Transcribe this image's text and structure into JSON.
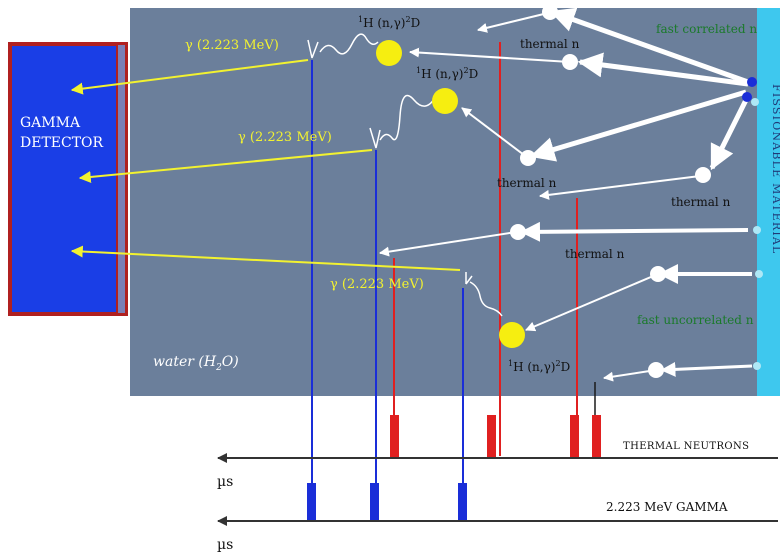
{
  "detector": {
    "line1": "GAMMA",
    "line2": "DETECTOR"
  },
  "material": {
    "label": "FISSIONABLE MATERIAL"
  },
  "water": {
    "label": "water (H",
    "sub": "2",
    "close": "O)"
  },
  "gammas": [
    {
      "label": "γ (2.223 MeV)"
    },
    {
      "label": "γ (2.223 MeV)"
    },
    {
      "label": "γ (2.223 MeV)"
    }
  ],
  "captures": [
    {
      "sup1": "1",
      "a": "H (n,",
      "g": "γ",
      "b": ")",
      "sup2": "2",
      "c": "D"
    },
    {
      "sup1": "1",
      "a": "H (n,",
      "g": "γ",
      "b": ")",
      "sup2": "2",
      "c": "D"
    },
    {
      "sup1": "1",
      "a": "H (n,",
      "g": "γ",
      "b": ")",
      "sup2": "2",
      "c": "D"
    }
  ],
  "thermal": [
    {
      "label": "thermal n"
    },
    {
      "label": "thermal n"
    },
    {
      "label": "thermal n"
    },
    {
      "label": "thermal n"
    }
  ],
  "fast": {
    "correlated": "fast correlated n",
    "uncorrelated": "fast uncorrelated n"
  },
  "timelines": {
    "neutrons_label": "THERMAL NEUTRONS",
    "gamma_label": "2.223 MeV GAMMA",
    "unit_top": "µs",
    "unit_bottom": "µs"
  },
  "colors": {
    "water": "#6b7f9b",
    "detector": "#1a3ee6",
    "detector_border": "#b02020",
    "material": "#3ec8ee",
    "gamma_line": "#1a2ed8",
    "neutron_line": "#e02020",
    "gamma_text": "#f2f230",
    "capture_ball": "#f6ee10",
    "arrow": "#ffffff"
  }
}
